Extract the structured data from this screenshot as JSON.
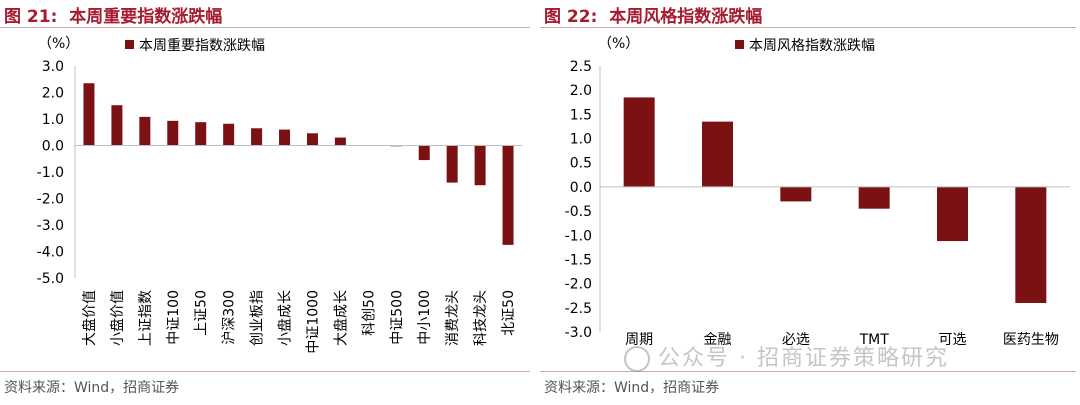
{
  "chart_data": [
    {
      "type": "bar",
      "figure_label": "图 21:",
      "title": "本周重要指数涨跌幅",
      "unit_label": "（%）",
      "legend": "本周重要指数涨跌幅",
      "legend_position": "top-left",
      "categories": [
        "大盘价值",
        "小盘价值",
        "上证指数",
        "中证100",
        "上证50",
        "沪深300",
        "创业板指",
        "小盘成长",
        "中证1000",
        "大盘成长",
        "科创50",
        "中证500",
        "中小100",
        "消费龙头",
        "科技龙头",
        "北证50"
      ],
      "values": [
        2.35,
        1.52,
        1.08,
        0.93,
        0.88,
        0.82,
        0.65,
        0.6,
        0.46,
        0.3,
        0.01,
        -0.03,
        -0.55,
        -1.4,
        -1.5,
        -3.75
      ],
      "yticks": [
        "3.0",
        "2.0",
        "1.0",
        "0.0",
        "-1.0",
        "-2.0",
        "-3.0",
        "-4.0",
        "-5.0"
      ],
      "ylim": [
        -5,
        3
      ],
      "bar_color": "#7b1113",
      "source": "资料来源：Wind，招商证券"
    },
    {
      "type": "bar",
      "figure_label": "图 22:",
      "title": "本周风格指数涨跌幅",
      "unit_label": "（%）",
      "legend": "本周风格指数涨跌幅",
      "legend_position": "top-left",
      "categories": [
        "周期",
        "金融",
        "必选",
        "TMT",
        "可选",
        "医药生物"
      ],
      "values": [
        1.85,
        1.35,
        -0.3,
        -0.45,
        -1.12,
        -2.4
      ],
      "yticks": [
        "2.5",
        "2.0",
        "1.5",
        "1.0",
        "0.5",
        "0.0",
        "-0.5",
        "-1.0",
        "-1.5",
        "-2.0",
        "-2.5",
        "-3.0"
      ],
      "ylim": [
        -3,
        2.5
      ],
      "bar_color": "#7b1113",
      "source": "资料来源：Wind，招商证券"
    }
  ],
  "watermark": "公众号 · 招商证券策略研究"
}
